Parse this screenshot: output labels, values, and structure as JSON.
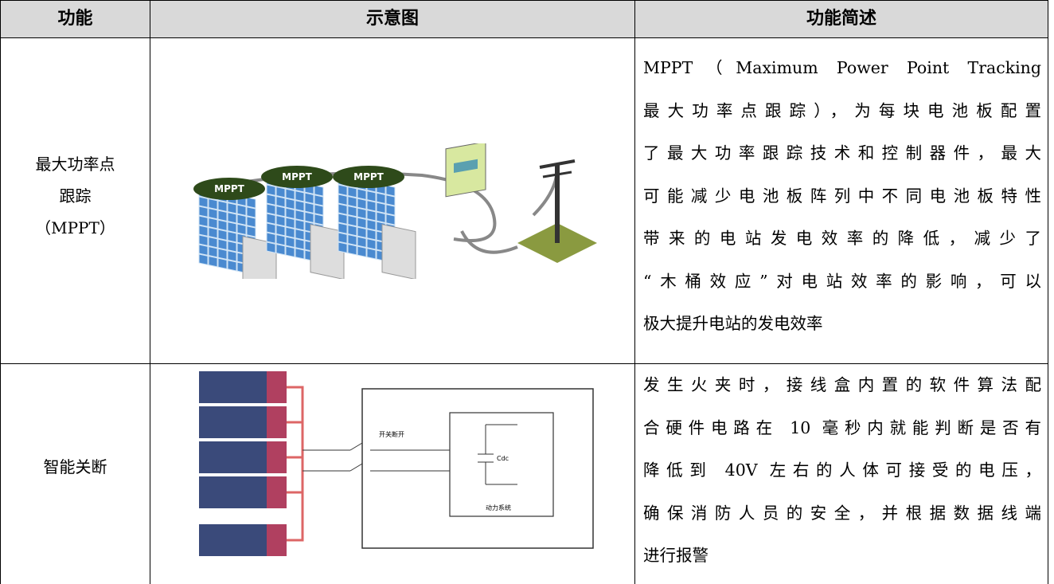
{
  "table": {
    "header": [
      "功能",
      "示意图",
      "功能简述"
    ],
    "rows": [
      {
        "function": [
          "最大功率点",
          "跟踪",
          "（MPPT）"
        ],
        "diagram_labels": [
          "MPPT",
          "MPPT",
          "MPPT"
        ],
        "description": [
          "MPPT（Maximum Power Point Tracking",
          "最大功率点跟踪），为每块电池板配置",
          "了最大功率跟踪技术和控制器件，最大",
          "可能减少电池板阵列中不同电池板特性",
          "带来的电站发电效率的降低，减少了",
          "“木桶效应”对电站效率的影响，可以",
          "极大提升电站的发电效率"
        ]
      },
      {
        "function": [
          "智能关断"
        ],
        "diagram_labels": [
          "开关断开",
          "Cdc",
          "动力系统"
        ],
        "description": [
          "发生火夹时，接线盒内置的软件算法配",
          "合硬件电路在 10 毫秒内就能判断是否有",
          "降低到 40V 左右的人体可接受的电压，",
          "确保消防人员的安全，并根据数据线端",
          "进行报警"
        ]
      }
    ]
  }
}
